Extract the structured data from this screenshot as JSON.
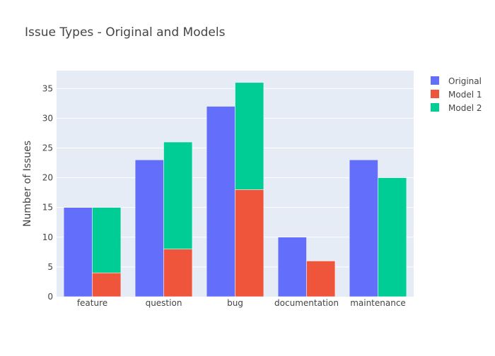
{
  "chart_data": {
    "type": "bar",
    "title": "Issue Types - Original and Models",
    "xlabel": "",
    "ylabel": "Number of Issues",
    "categories": [
      "feature",
      "question",
      "bug",
      "documentation",
      "maintenance"
    ],
    "ylim": [
      0,
      38
    ],
    "yticks": [
      0,
      5,
      10,
      15,
      20,
      25,
      30,
      35
    ],
    "grid": true,
    "legend_position": "top-right",
    "series": [
      {
        "name": "Original",
        "color": "#636efa",
        "group": "left",
        "values": [
          15,
          23,
          32,
          10,
          23
        ]
      },
      {
        "name": "Model 1",
        "color": "#ef553b",
        "group": "right",
        "values": [
          4,
          8,
          18,
          6,
          0
        ]
      },
      {
        "name": "Model 2",
        "color": "#00cc96",
        "group": "right",
        "values": [
          11,
          18,
          18,
          0,
          20
        ]
      }
    ],
    "colors": {
      "plot_bg": "#e5ecf6",
      "grid": "#ffffff",
      "text": "#444444",
      "title": "#444444"
    }
  }
}
